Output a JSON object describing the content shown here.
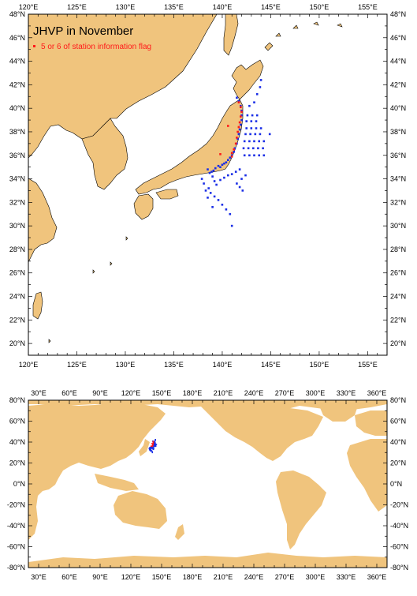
{
  "colors": {
    "land": "#f0c47d",
    "ocean": "#ffffff",
    "station": "#1a2ee6",
    "flagged": "#ff1a1a",
    "frame": "#000000"
  },
  "top_map": {
    "title": "JHVP in November",
    "legend_label": "5 or 6 of station information flag",
    "lon_labels": [
      "120°E",
      "125°E",
      "130°E",
      "135°E",
      "140°E",
      "145°E",
      "150°E",
      "155°E"
    ],
    "lat_labels": [
      "20°N",
      "22°N",
      "24°N",
      "26°N",
      "28°N",
      "30°N",
      "32°N",
      "34°N",
      "36°N",
      "38°N",
      "40°N",
      "42°N",
      "44°N",
      "46°N",
      "48°N"
    ]
  },
  "bottom_map": {
    "lon_labels": [
      "30°E",
      "60°E",
      "90°E",
      "120°E",
      "150°E",
      "180°E",
      "210°E",
      "240°E",
      "270°E",
      "300°E",
      "330°E",
      "360°E"
    ],
    "lat_labels": [
      "80°N",
      "60°N",
      "40°N",
      "20°N",
      "0°N",
      "-20°N",
      "-40°N",
      "-60°N",
      "-80°N"
    ]
  },
  "chart_data": {
    "type": "scatter",
    "title": "JHVP in November",
    "legend": "5 or 6 of station information flag",
    "xlim_top": [
      120,
      157
    ],
    "ylim_top": [
      19,
      48
    ],
    "xlim_bottom": [
      20,
      370
    ],
    "ylim_bottom": [
      -80,
      80
    ],
    "series": [
      {
        "name": "stations",
        "points": [
          [
            138.5,
            34.8
          ],
          [
            138.7,
            34.5
          ],
          [
            138.9,
            34.6
          ],
          [
            139.1,
            34.7
          ],
          [
            139.3,
            34.9
          ],
          [
            139.6,
            35.1
          ],
          [
            139.8,
            35.0
          ],
          [
            140.0,
            35.2
          ],
          [
            140.2,
            35.3
          ],
          [
            140.4,
            35.4
          ],
          [
            140.6,
            35.6
          ],
          [
            140.8,
            35.8
          ],
          [
            141.0,
            36.0
          ],
          [
            141.2,
            36.3
          ],
          [
            141.3,
            36.6
          ],
          [
            141.5,
            37.0
          ],
          [
            141.6,
            37.4
          ],
          [
            141.7,
            37.8
          ],
          [
            141.8,
            38.2
          ],
          [
            141.9,
            38.6
          ],
          [
            142.0,
            39.0
          ],
          [
            142.0,
            39.4
          ],
          [
            142.0,
            39.8
          ],
          [
            141.9,
            40.2
          ],
          [
            141.7,
            40.6
          ],
          [
            141.5,
            40.9
          ],
          [
            139.0,
            34.2
          ],
          [
            139.2,
            33.8
          ],
          [
            139.4,
            33.5
          ],
          [
            139.8,
            33.9
          ],
          [
            140.2,
            34.1
          ],
          [
            140.6,
            34.3
          ],
          [
            141.0,
            34.4
          ],
          [
            141.4,
            34.6
          ],
          [
            141.8,
            34.8
          ],
          [
            138.6,
            33.2
          ],
          [
            138.8,
            32.8
          ],
          [
            139.2,
            32.5
          ],
          [
            139.6,
            32.2
          ],
          [
            140.0,
            31.8
          ],
          [
            140.4,
            31.4
          ],
          [
            140.8,
            31.0
          ],
          [
            141.0,
            30.0
          ],
          [
            142.3,
            36.0
          ],
          [
            142.8,
            36.0
          ],
          [
            143.3,
            36.0
          ],
          [
            143.8,
            36.0
          ],
          [
            144.3,
            36.0
          ],
          [
            142.2,
            36.6
          ],
          [
            142.7,
            36.6
          ],
          [
            143.2,
            36.6
          ],
          [
            143.7,
            36.6
          ],
          [
            144.2,
            36.6
          ],
          [
            142.3,
            37.2
          ],
          [
            142.8,
            37.2
          ],
          [
            143.3,
            37.2
          ],
          [
            143.8,
            37.2
          ],
          [
            144.3,
            37.2
          ],
          [
            142.4,
            37.8
          ],
          [
            142.9,
            37.8
          ],
          [
            143.4,
            37.8
          ],
          [
            143.9,
            37.8
          ],
          [
            144.9,
            37.8
          ],
          [
            142.5,
            38.3
          ],
          [
            143.0,
            38.3
          ],
          [
            143.5,
            38.3
          ],
          [
            144.0,
            38.3
          ],
          [
            142.5,
            38.9
          ],
          [
            143.0,
            38.9
          ],
          [
            143.5,
            38.9
          ],
          [
            142.6,
            39.4
          ],
          [
            143.1,
            39.4
          ],
          [
            143.6,
            39.4
          ],
          [
            142.8,
            40.2
          ],
          [
            143.3,
            40.5
          ],
          [
            143.6,
            41.2
          ],
          [
            144.0,
            42.4
          ],
          [
            143.9,
            41.8
          ],
          [
            141.5,
            33.6
          ],
          [
            141.8,
            33.3
          ],
          [
            142.1,
            33.0
          ],
          [
            142.0,
            34.0
          ],
          [
            142.4,
            34.3
          ],
          [
            137.9,
            34.0
          ],
          [
            138.1,
            33.6
          ],
          [
            138.3,
            33.0
          ],
          [
            138.5,
            32.4
          ],
          [
            139.0,
            31.6
          ]
        ]
      },
      {
        "name": "5 or 6 of station information flag",
        "points": [
          [
            141.0,
            36.2
          ],
          [
            141.2,
            36.5
          ],
          [
            141.4,
            37.0
          ],
          [
            141.5,
            37.5
          ],
          [
            141.6,
            38.0
          ],
          [
            141.7,
            38.4
          ],
          [
            141.8,
            38.8
          ],
          [
            141.9,
            39.3
          ],
          [
            142.0,
            39.7
          ],
          [
            141.9,
            40.1
          ],
          [
            141.7,
            40.5
          ],
          [
            140.6,
            38.5
          ],
          [
            139.8,
            36.1
          ],
          [
            141.0,
            35.9
          ]
        ]
      }
    ]
  }
}
